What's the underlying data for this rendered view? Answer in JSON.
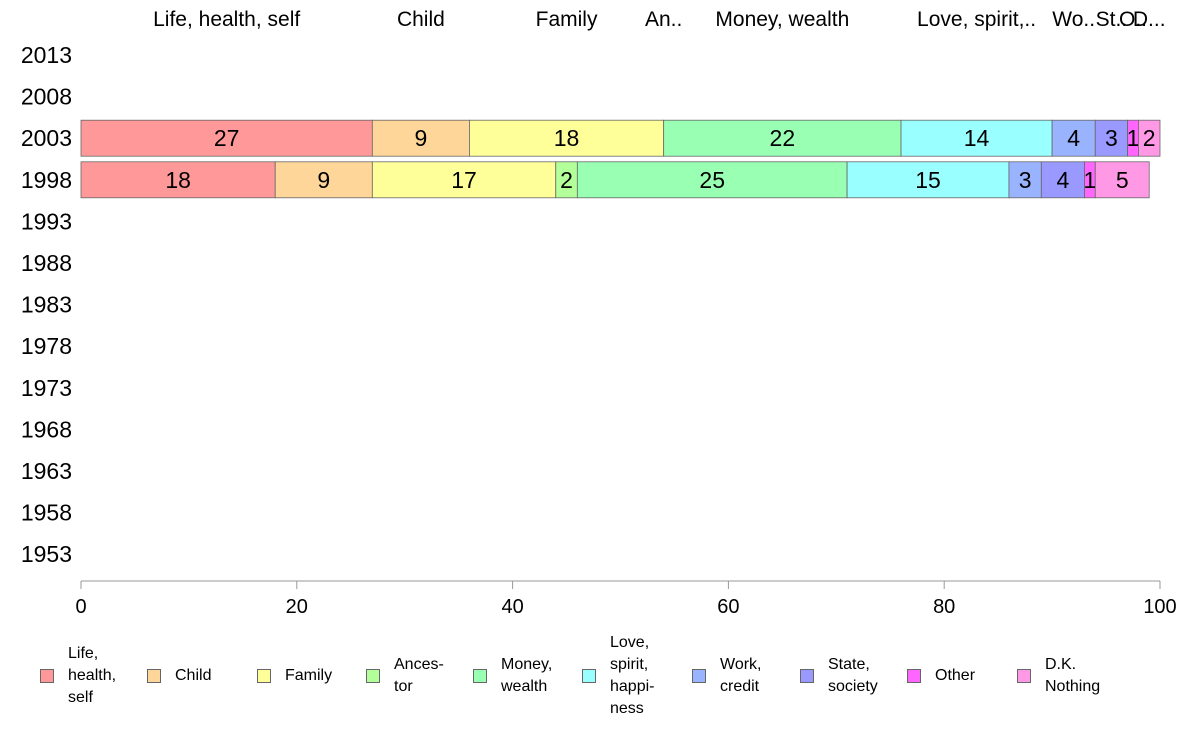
{
  "chart_data": {
    "type": "bar",
    "orientation": "horizontal",
    "stacked": true,
    "years": [
      "2013",
      "2008",
      "2003",
      "1998",
      "1993",
      "1988",
      "1983",
      "1978",
      "1973",
      "1968",
      "1963",
      "1958",
      "1953"
    ],
    "top_labels": [
      "Life, health, self",
      "Child",
      "Family",
      "An..",
      "Money, wealth",
      "Love, spirit,..",
      "Wo..",
      "St..",
      "O..",
      "D..."
    ],
    "series": [
      {
        "name": "Life,\nhealth,\nself",
        "color": "#ff9999",
        "values": {
          "2003": 27,
          "1998": 18
        }
      },
      {
        "name": "Child",
        "color": "#ffd699",
        "values": {
          "2003": 9,
          "1998": 9
        }
      },
      {
        "name": "Family",
        "color": "#ffff99",
        "values": {
          "2003": 18,
          "1998": 17
        }
      },
      {
        "name": "Ances-\ntor",
        "color": "#b3ff99",
        "values": {
          "2003": 0,
          "1998": 2
        }
      },
      {
        "name": "Money,\nwealth",
        "color": "#99ffb3",
        "values": {
          "2003": 22,
          "1998": 25
        }
      },
      {
        "name": "Love,\nspirit,\nhappi-\nness",
        "color": "#99ffff",
        "values": {
          "2003": 14,
          "1998": 15
        }
      },
      {
        "name": "Work,\ncredit",
        "color": "#99b3ff",
        "values": {
          "2003": 4,
          "1998": 3
        }
      },
      {
        "name": "State,\nsociety",
        "color": "#9999ff",
        "values": {
          "2003": 3,
          "1998": 4
        }
      },
      {
        "name": "Other",
        "color": "#ff66ff",
        "values": {
          "2003": 1,
          "1998": 1
        }
      },
      {
        "name": "D.K.\nNothing",
        "color": "#ff99e6",
        "values": {
          "2003": 2,
          "1998": 5
        }
      }
    ],
    "xlim": [
      0,
      100
    ],
    "xticks": [
      0,
      20,
      40,
      60,
      80,
      100
    ],
    "legend_position": "bottom"
  }
}
